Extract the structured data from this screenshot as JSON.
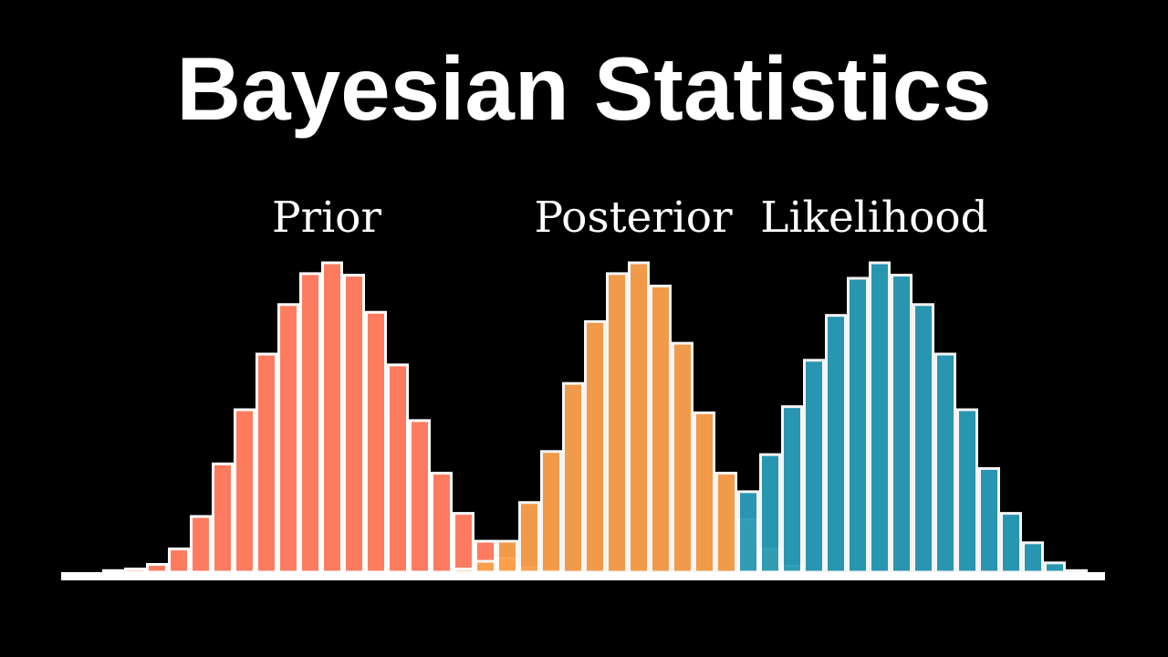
{
  "title": "Bayesian Statistics",
  "colors": {
    "background": "#000000",
    "outline": "#ffffff",
    "prior": "#ff7b5f",
    "posterior": "#fba14c",
    "likelihood": "#2a9db8"
  },
  "chart_data": {
    "type": "bar",
    "title": "Bayesian Statistics",
    "xlabel": "",
    "ylabel": "",
    "ylim": [
      0,
      100
    ],
    "grid": false,
    "legend": "labels above each distribution",
    "bin_range": [
      0,
      46
    ],
    "series": [
      {
        "name": "Prior",
        "color": "#ff7b5f",
        "start_bin": 0,
        "values": [
          0.5,
          1,
          2.5,
          7.5,
          18,
          35,
          52.5,
          70.5,
          86.5,
          96.5,
          100,
          96,
          84,
          67,
          49,
          32,
          19,
          10,
          4.5,
          1.5,
          0.5
        ]
      },
      {
        "name": "Posterior",
        "color": "#fba14c",
        "start_bin": 16,
        "values": [
          1,
          3.5,
          10,
          22.5,
          39,
          61,
          81,
          96.5,
          100,
          92.5,
          74,
          51.5,
          32,
          17,
          7.5,
          2
        ]
      },
      {
        "name": "Likelihood",
        "color": "#2a9db8",
        "start_bin": 29,
        "values": [
          26,
          38,
          53.5,
          68.5,
          83,
          95,
          100,
          96,
          86.5,
          70.5,
          52.5,
          33.5,
          19,
          9.5,
          3,
          0.5
        ]
      }
    ]
  }
}
